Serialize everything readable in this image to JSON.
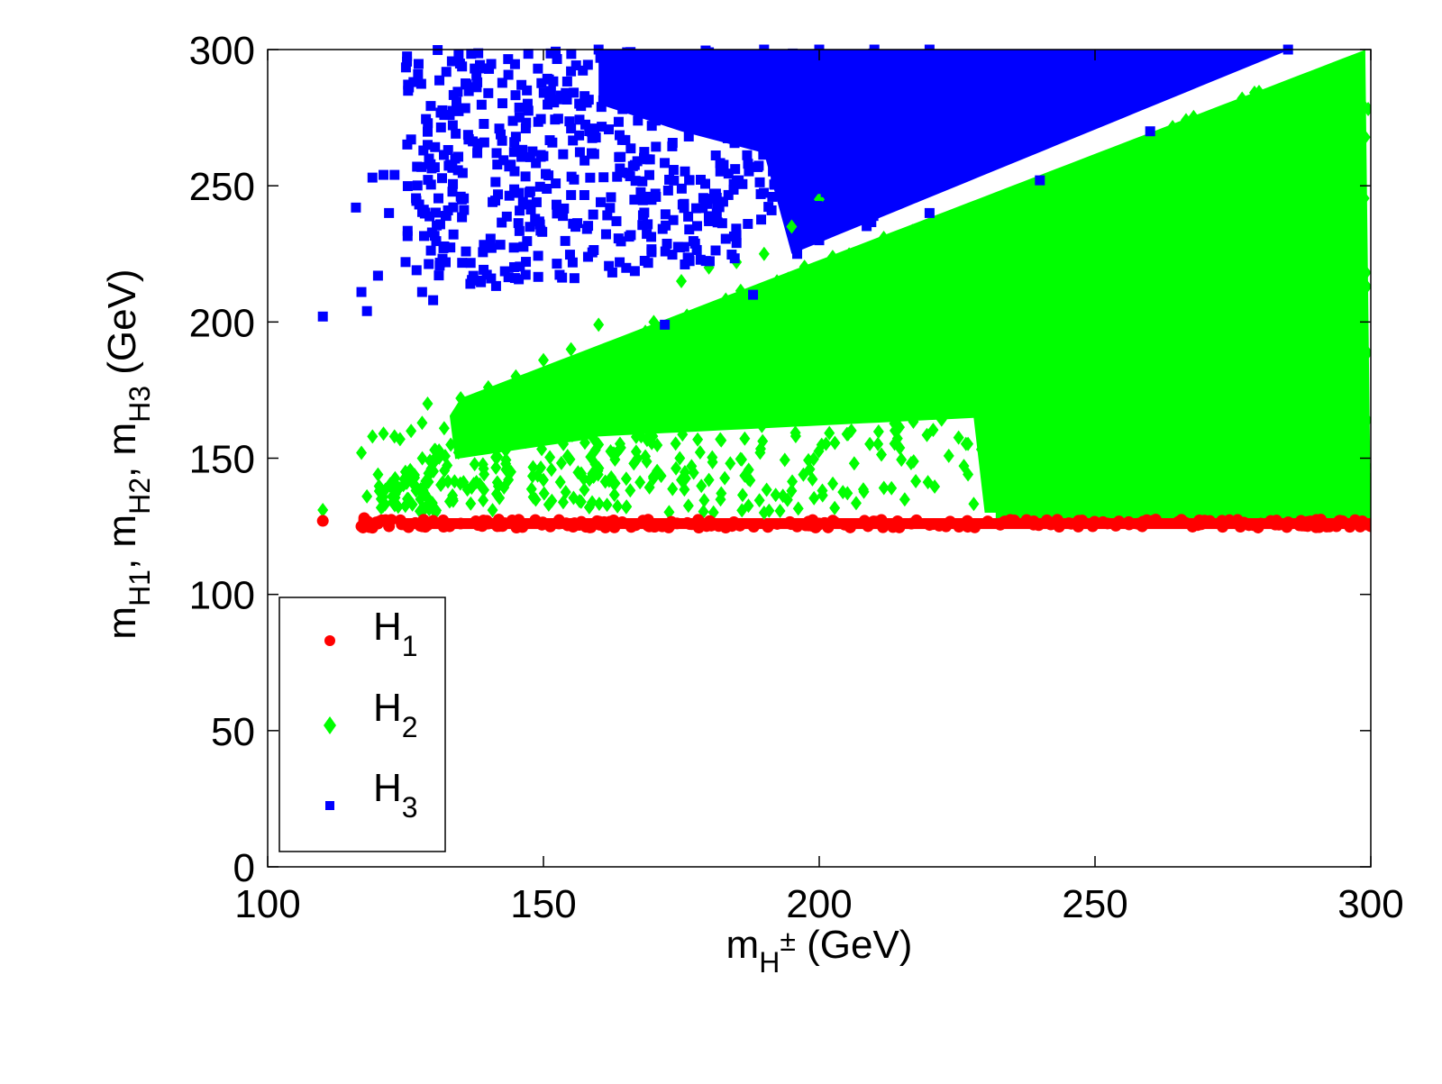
{
  "chart_data": {
    "type": "scatter",
    "title": "",
    "xlabel": {
      "base": "m",
      "sub": "H",
      "sup": "±",
      "suffix": " (GeV)"
    },
    "ylabel": {
      "parts": [
        {
          "base": "m",
          "sub": "H1",
          "sep": ", "
        },
        {
          "base": "m",
          "sub": "H2",
          "sep": ", "
        },
        {
          "base": "m",
          "sub": "H3",
          "sep": " (GeV)"
        }
      ]
    },
    "xlim": [
      100,
      300
    ],
    "ylim": [
      0,
      300
    ],
    "xticks": [
      100,
      150,
      200,
      250,
      300
    ],
    "yticks": [
      0,
      50,
      100,
      150,
      200,
      250,
      300
    ],
    "x_tick_labels": [
      "100",
      "150",
      "200",
      "250",
      "300"
    ],
    "y_tick_labels": [
      "0",
      "50",
      "100",
      "150",
      "200",
      "250",
      "300"
    ],
    "grid": false,
    "legend_position": "bottom-left",
    "series": [
      {
        "name": {
          "base": "H",
          "sub": "1"
        },
        "marker": "circle",
        "color": "#ff0000",
        "x_range": [
          110,
          300
        ],
        "y_range": [
          124,
          128
        ],
        "points": [
          [
            110,
            127
          ],
          [
            117,
            125
          ],
          [
            117.5,
            128
          ],
          [
            119,
            124.5
          ],
          [
            120,
            126
          ],
          [
            122,
            125
          ],
          [
            125,
            125.5
          ],
          [
            128,
            126
          ],
          [
            130,
            127
          ],
          [
            133,
            125
          ],
          [
            135,
            126
          ],
          [
            140,
            126
          ],
          [
            145,
            125.5
          ],
          [
            150,
            126
          ],
          [
            160,
            126.5
          ],
          [
            170,
            125.5
          ],
          [
            180,
            126
          ],
          [
            200,
            126
          ],
          [
            220,
            125.5
          ],
          [
            250,
            126
          ],
          [
            280,
            126
          ],
          [
            300,
            125
          ]
        ]
      },
      {
        "name": {
          "base": "H",
          "sub": "2"
        },
        "marker": "diamond",
        "color": "#00ff00",
        "x_range": [
          110,
          300
        ],
        "y_range": [
          128,
          300
        ],
        "points": [
          [
            110,
            131
          ],
          [
            117,
            152
          ],
          [
            118,
            136
          ],
          [
            119,
            158
          ],
          [
            120,
            144
          ],
          [
            121,
            159
          ],
          [
            123,
            158
          ],
          [
            124,
            157
          ],
          [
            125,
            141
          ],
          [
            126,
            160
          ],
          [
            128,
            163
          ],
          [
            129,
            170
          ],
          [
            130,
            148
          ],
          [
            132,
            161
          ],
          [
            135,
            172
          ],
          [
            138,
            166
          ],
          [
            140,
            176
          ],
          [
            145,
            180
          ],
          [
            150,
            186
          ],
          [
            155,
            190
          ],
          [
            160,
            199
          ],
          [
            170,
            200
          ],
          [
            175,
            215
          ],
          [
            180,
            220
          ],
          [
            185,
            222
          ],
          [
            190,
            225
          ],
          [
            195,
            235
          ],
          [
            200,
            245
          ],
          [
            150,
            142
          ],
          [
            160,
            155
          ],
          [
            165,
            132
          ],
          [
            175,
            142
          ],
          [
            180,
            142
          ],
          [
            190,
            130
          ],
          [
            195,
            138
          ],
          [
            200,
            165
          ],
          [
            210,
            175
          ],
          [
            220,
            185
          ],
          [
            230,
            195
          ],
          [
            240,
            210
          ]
        ]
      },
      {
        "name": {
          "base": "H",
          "sub": "3"
        },
        "marker": "square",
        "color": "#0000ff",
        "x_range": [
          110,
          300
        ],
        "y_range": [
          198,
          300
        ],
        "points": [
          [
            110,
            202
          ],
          [
            116,
            242
          ],
          [
            117,
            211
          ],
          [
            118,
            204
          ],
          [
            119,
            253
          ],
          [
            120,
            217
          ],
          [
            121,
            254
          ],
          [
            122,
            240
          ],
          [
            123,
            254
          ],
          [
            125,
            222
          ],
          [
            126,
            267
          ],
          [
            127,
            219
          ],
          [
            128,
            211
          ],
          [
            129,
            265
          ],
          [
            130,
            208
          ],
          [
            133,
            276
          ],
          [
            135,
            246
          ],
          [
            138,
            262
          ],
          [
            140,
            284
          ],
          [
            142,
            271
          ],
          [
            145,
            268
          ],
          [
            147,
            285
          ],
          [
            149,
            293
          ],
          [
            151,
            289
          ],
          [
            155,
            292
          ],
          [
            160,
            300
          ],
          [
            165,
            290
          ],
          [
            170,
            296
          ],
          [
            172,
            199
          ],
          [
            175,
            292
          ],
          [
            180,
            299
          ],
          [
            190,
            300
          ],
          [
            200,
            300
          ],
          [
            210,
            300
          ],
          [
            220,
            300
          ],
          [
            180,
            237
          ],
          [
            185,
            229
          ],
          [
            188,
            210
          ],
          [
            196,
            225
          ],
          [
            200,
            230
          ],
          [
            220,
            240
          ],
          [
            240,
            252
          ],
          [
            260,
            270
          ],
          [
            285,
            300
          ]
        ]
      }
    ]
  }
}
